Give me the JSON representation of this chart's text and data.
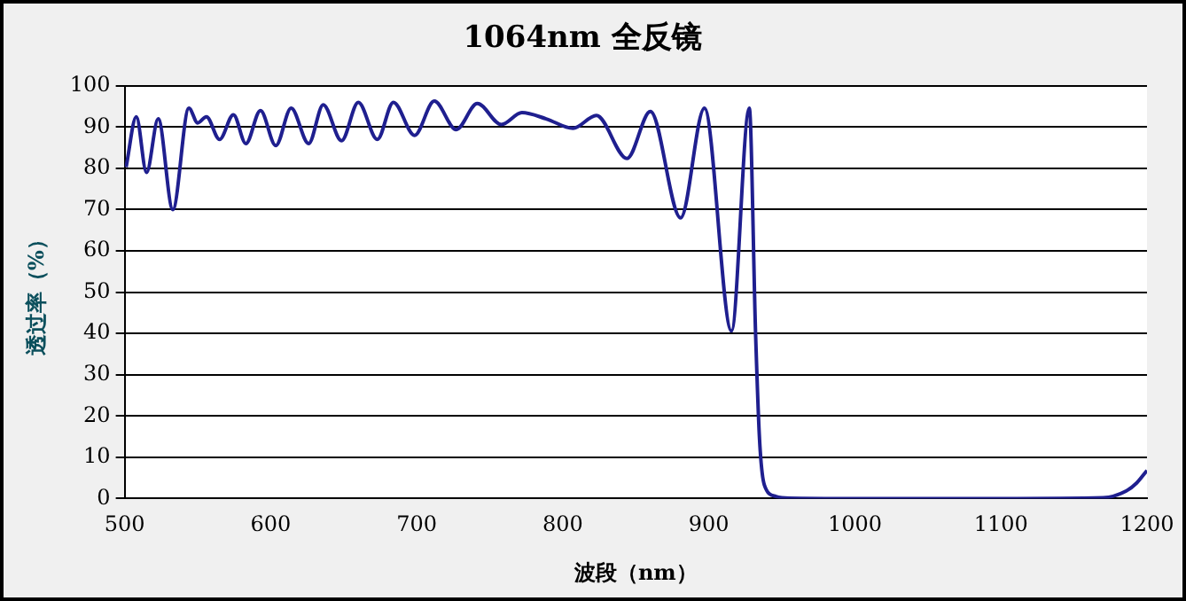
{
  "chart_data": {
    "type": "line",
    "title": "1064nm 全反镜",
    "xlabel": "波段（nm）",
    "ylabel": "透过率（%）",
    "xlim": [
      500,
      1200
    ],
    "xticks": [
      500,
      600,
      700,
      800,
      900,
      1000,
      1100,
      1200
    ],
    "ylim": [
      0,
      100
    ],
    "yticks": [
      0,
      10,
      20,
      30,
      40,
      50,
      60,
      70,
      80,
      90,
      100
    ],
    "grid": "y",
    "legend": false,
    "marker": "none",
    "line_style": "solid",
    "series": [
      {
        "color": "#1f1f8f",
        "x": [
          501,
          508,
          515,
          523,
          533,
          544,
          550,
          556,
          565,
          574.5,
          583,
          593,
          603.5,
          614,
          626,
          636,
          648.5,
          660,
          673,
          684,
          698.5,
          712,
          727,
          741.5,
          758,
          772,
          788.6,
          807,
          823,
          844,
          860,
          880.7,
          897,
          915.5,
          927.7,
          932,
          934.7,
          938,
          946,
          955,
          1000,
          1100,
          1170,
          1185.6,
          1193,
          1200
        ],
        "values": [
          80.3,
          92.5,
          79,
          92,
          70,
          94.6,
          91,
          92.5,
          87,
          93,
          86,
          94,
          85.5,
          94.6,
          86,
          95.4,
          86.7,
          96,
          87,
          96,
          88,
          96.3,
          89.4,
          95.7,
          90.6,
          93.5,
          92,
          89.7,
          92.8,
          82.4,
          93.8,
          68,
          94.6,
          40.6,
          94.6,
          40,
          14.4,
          3.3,
          0.5,
          0.1,
          0,
          0,
          0.2,
          1.8,
          3.8,
          6.8
        ]
      }
    ]
  }
}
